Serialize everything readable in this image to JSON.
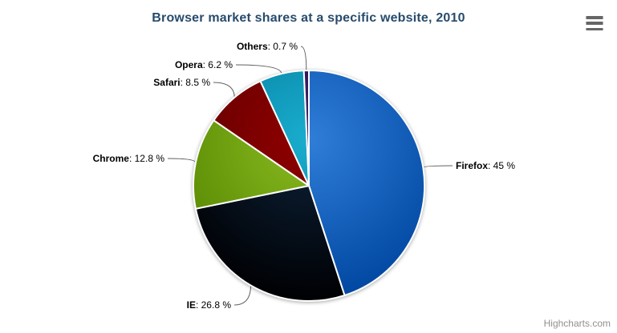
{
  "title": "Browser market shares at a specific website, 2010",
  "credits": "Highcharts.com",
  "toolbar": {
    "export_menu_tooltip": "Chart context menu"
  },
  "colors": {
    "title_text": "#274b6d",
    "label_text": "#000000",
    "connector": "#606060",
    "credits_text": "#909090",
    "menu_icon": "#666666",
    "slice_border": "#ffffff",
    "background": "#ffffff"
  },
  "chart_data": {
    "type": "pie",
    "title": "Browser market shares at a specific website, 2010",
    "legend": "none",
    "label_format": "{name}: {value} %",
    "slices": [
      {
        "label": "Firefox",
        "value": 45,
        "display": "45 %",
        "color": "#2f7ed8"
      },
      {
        "label": "IE",
        "value": 26.8,
        "display": "26.8 %",
        "color": "#0d233a"
      },
      {
        "label": "Chrome",
        "value": 12.8,
        "display": "12.8 %",
        "color": "#8bbc21"
      },
      {
        "label": "Safari",
        "value": 8.5,
        "display": "8.5 %",
        "color": "#910000"
      },
      {
        "label": "Opera",
        "value": 6.2,
        "display": "6.2 %",
        "color": "#1aadce"
      },
      {
        "label": "Others",
        "value": 0.7,
        "display": "0.7 %",
        "color": "#492970"
      }
    ]
  }
}
